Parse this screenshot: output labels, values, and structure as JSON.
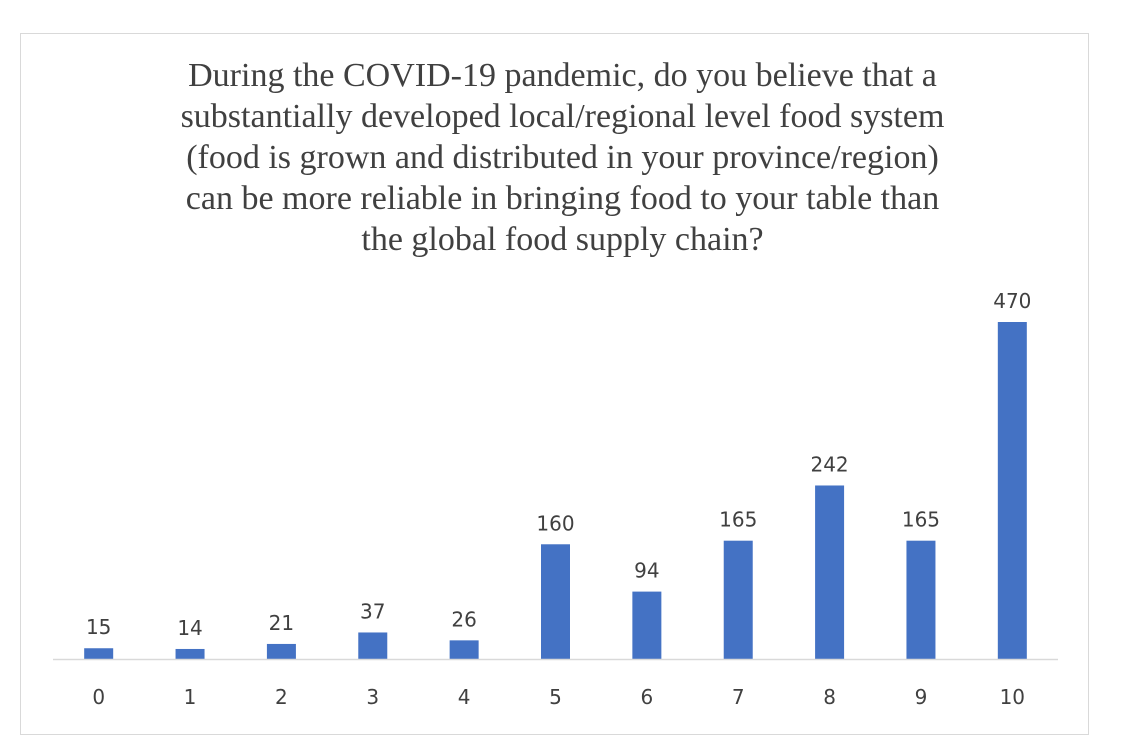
{
  "chart_data": {
    "type": "bar",
    "title_lines": [
      "During the COVID-19 pandemic, do you believe that a",
      "substantially developed local/regional level food system",
      "(food is grown and distributed in your province/region)",
      "can be more reliable in bringing food to your table than",
      "the global food supply chain?"
    ],
    "categories": [
      "0",
      "1",
      "2",
      "3",
      "4",
      "5",
      "6",
      "7",
      "8",
      "9",
      "10"
    ],
    "values": [
      15,
      14,
      21,
      37,
      26,
      160,
      94,
      165,
      242,
      165,
      470
    ],
    "ylim": [
      0,
      470
    ],
    "bar_color": "#4472c4",
    "axis_color": "#d9d9d9",
    "text_color": "#404040",
    "grid": false,
    "legend": false,
    "data_labels": true
  }
}
